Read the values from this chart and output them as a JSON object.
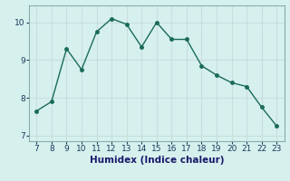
{
  "x": [
    7,
    8,
    9,
    10,
    11,
    12,
    13,
    14,
    15,
    16,
    17,
    18,
    19,
    20,
    21,
    22,
    23
  ],
  "y": [
    7.65,
    7.9,
    9.3,
    8.75,
    9.75,
    10.1,
    9.95,
    9.35,
    10.0,
    9.55,
    9.55,
    8.85,
    8.6,
    8.4,
    8.3,
    7.75,
    7.25
  ],
  "line_color": "#1a6b5a",
  "marker": "o",
  "marker_size": 2.5,
  "line_width": 1.0,
  "bg_color": "#d6f0ee",
  "grid_color": "#c8dede",
  "xlabel": "Humidex (Indice chaleur)",
  "xlim": [
    6.5,
    23.5
  ],
  "ylim": [
    6.85,
    10.45
  ],
  "xticks": [
    7,
    8,
    9,
    10,
    11,
    12,
    13,
    14,
    15,
    16,
    17,
    18,
    19,
    20,
    21,
    22,
    23
  ],
  "yticks": [
    7,
    8,
    9,
    10
  ],
  "xlabel_fontsize": 7.5,
  "tick_fontsize": 6.5,
  "tick_color": "#1a3a5a",
  "xlabel_color": "#1a1a6a",
  "spine_color": "#8aaaaa"
}
